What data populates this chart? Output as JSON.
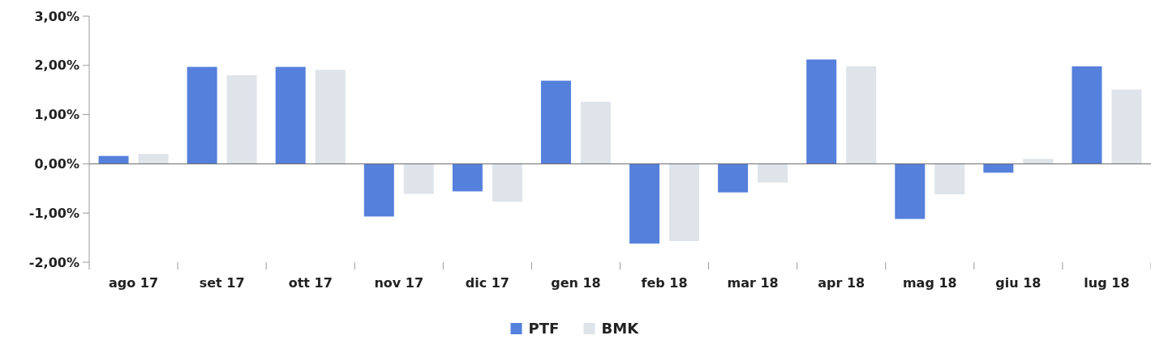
{
  "chart_data": {
    "type": "bar",
    "categories": [
      "ago 17",
      "set 17",
      "ott 17",
      "nov 17",
      "dic 17",
      "gen 18",
      "feb 18",
      "mar 18",
      "apr 18",
      "mag 18",
      "giu 18",
      "lug 18"
    ],
    "series": [
      {
        "name": "PTF",
        "color": "#5580dc",
        "values": [
          0.16,
          1.97,
          1.97,
          -1.07,
          -0.56,
          1.69,
          -1.62,
          -0.58,
          2.12,
          -1.12,
          -0.18,
          1.98
        ]
      },
      {
        "name": "BMK",
        "color": "#dfe3ea",
        "values": [
          0.2,
          1.8,
          1.91,
          -0.61,
          -0.77,
          1.26,
          -1.57,
          -0.38,
          1.98,
          -0.62,
          0.1,
          1.51
        ]
      }
    ],
    "ylim": [
      -2,
      3
    ],
    "yticks": [
      {
        "value": -2,
        "label": "-2,00%"
      },
      {
        "value": -1,
        "label": "-1,00%"
      },
      {
        "value": 0,
        "label": "0,00%"
      },
      {
        "value": 1,
        "label": "1,00%"
      },
      {
        "value": 2,
        "label": "2,00%"
      },
      {
        "value": 3,
        "label": "3,00%"
      }
    ],
    "legend": "bottom"
  }
}
